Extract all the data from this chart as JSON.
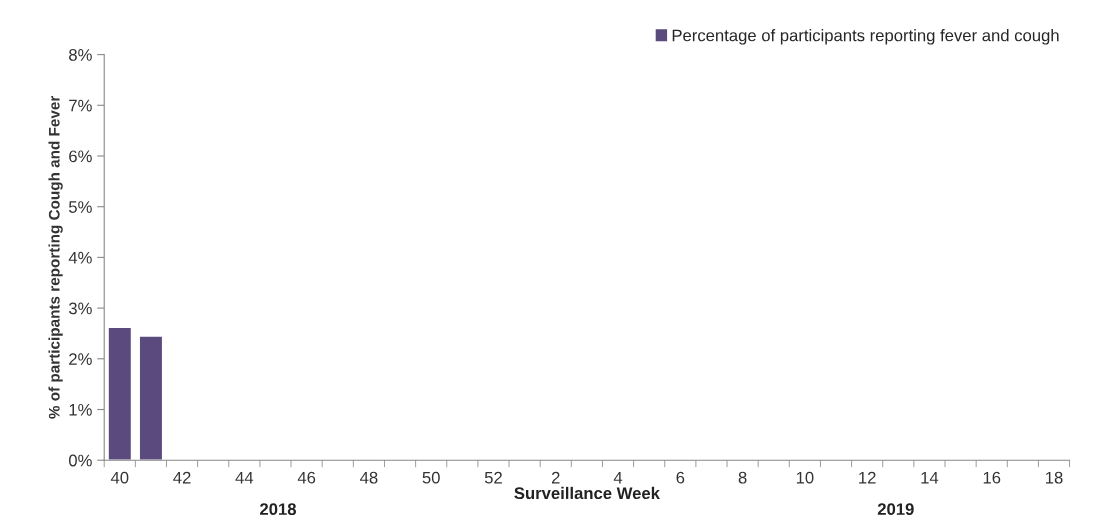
{
  "chart_data": {
    "type": "bar",
    "xlabel": "Surveillance Week",
    "ylabel": "% of participants reporting Cough and Fever",
    "categories": [
      "40",
      null,
      "42",
      null,
      "44",
      null,
      "46",
      null,
      "48",
      null,
      "50",
      null,
      "52",
      null,
      "2",
      null,
      "4",
      null,
      "6",
      null,
      "8",
      null,
      "10",
      null,
      "12",
      null,
      "14",
      null,
      "16",
      null,
      "18"
    ],
    "series": [
      {
        "name": "Percentage of participants reporting fever and cough",
        "color": "#5b4a7e",
        "values": [
          2.62,
          2.45,
          null,
          null,
          null,
          null,
          null,
          null,
          null,
          null,
          null,
          null,
          null,
          null,
          null,
          null,
          null,
          null,
          null,
          null,
          null,
          null,
          null,
          null,
          null,
          null,
          null,
          null,
          null,
          null,
          null
        ]
      }
    ],
    "ylim": [
      0,
      8
    ],
    "yticks": [
      {
        "value": 0,
        "label": "0%"
      },
      {
        "value": 1,
        "label": "1%"
      },
      {
        "value": 2,
        "label": "2%"
      },
      {
        "value": 3,
        "label": "3%"
      },
      {
        "value": 4,
        "label": "4%"
      },
      {
        "value": 5,
        "label": "5%"
      },
      {
        "value": 6,
        "label": "6%"
      },
      {
        "value": 7,
        "label": "7%"
      },
      {
        "value": 8,
        "label": "8%"
      }
    ],
    "annotations": [
      "2018",
      "2019"
    ],
    "grid": false,
    "legend": "top right"
  }
}
